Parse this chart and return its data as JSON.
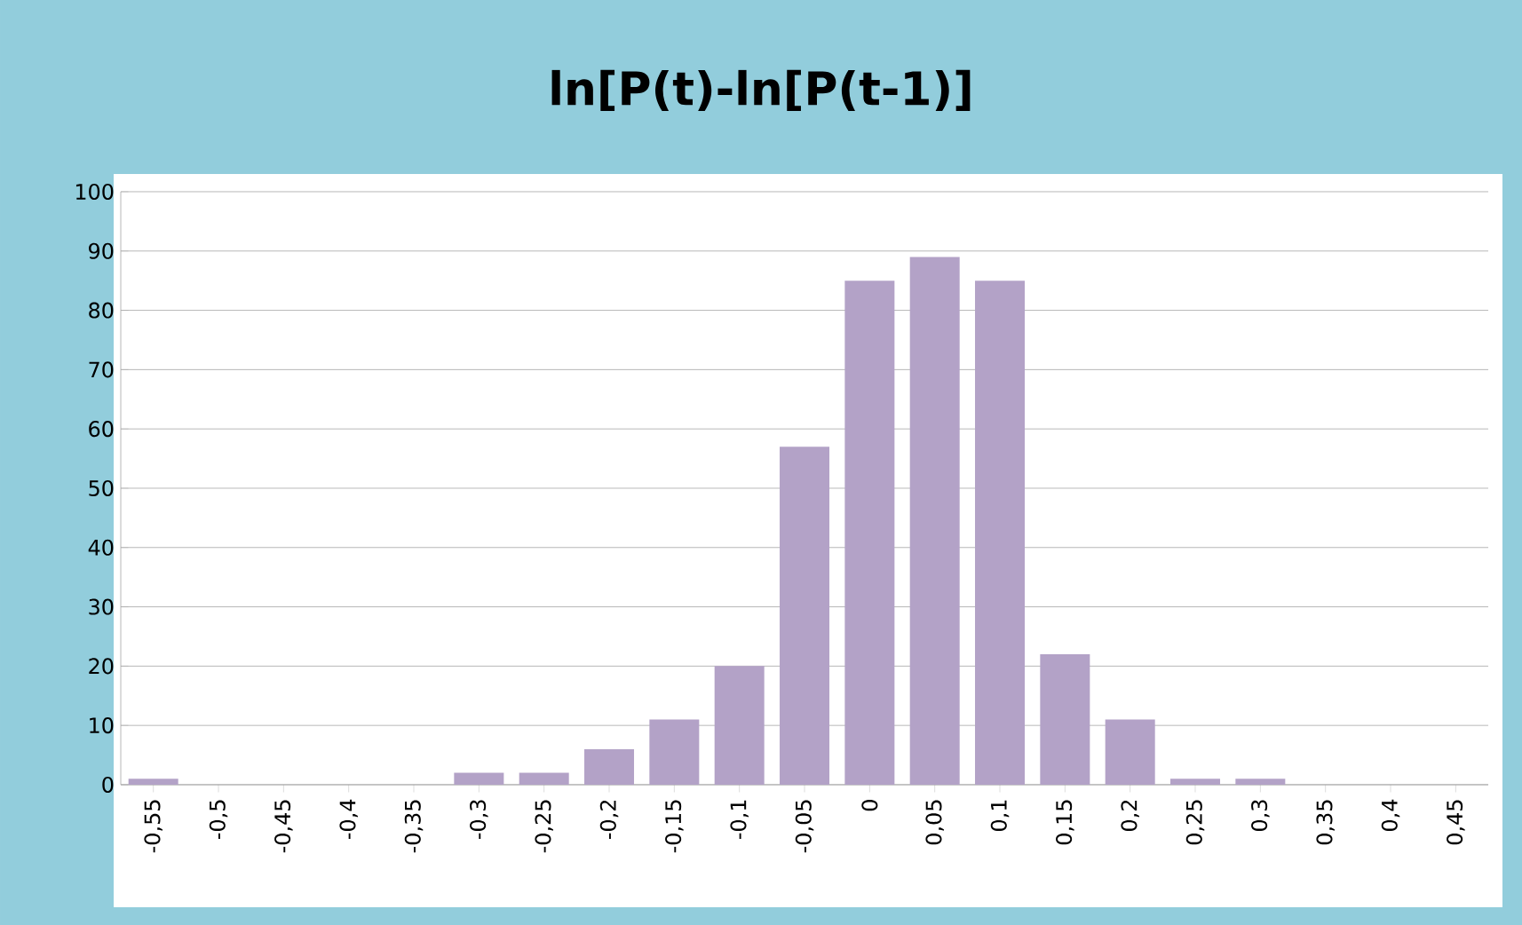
{
  "chart_data": {
    "type": "bar",
    "title": "ln[P(t)-ln[P(t-1)]",
    "categories": [
      "-0,55",
      "-0,5",
      "-0,45",
      "-0,4",
      "-0,35",
      "-0,3",
      "-0,25",
      "-0,2",
      "-0,15",
      "-0,1",
      "-0,05",
      "0",
      "0,05",
      "0,1",
      "0,15",
      "0,2",
      "0,25",
      "0,3",
      "0,35",
      "0,4",
      "0,45"
    ],
    "values": [
      1,
      0,
      0,
      0,
      0,
      2,
      2,
      6,
      11,
      20,
      57,
      85,
      89,
      85,
      22,
      11,
      1,
      1,
      0,
      0,
      0
    ],
    "color": "#b3a2c7",
    "ylim": [
      0,
      100
    ],
    "yticks": [
      0,
      10,
      20,
      30,
      40,
      50,
      60,
      70,
      80,
      90,
      100
    ],
    "grid": "y"
  }
}
